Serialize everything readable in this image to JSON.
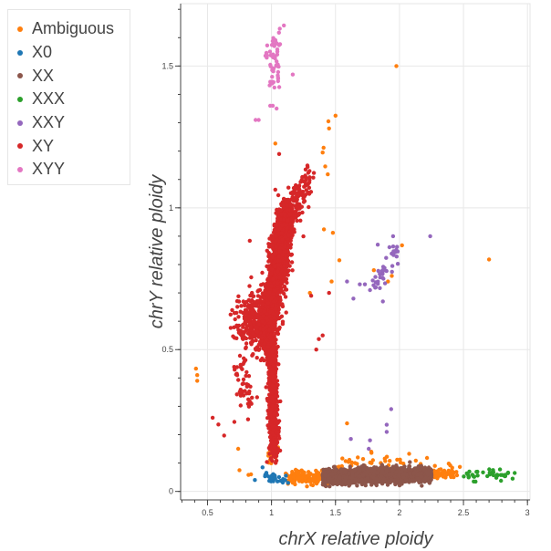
{
  "chart_data": {
    "type": "scatter",
    "title": "",
    "xlabel": "chrX relative ploidy",
    "ylabel": "chrY relative ploidy",
    "xlim": [
      0.29,
      3.02
    ],
    "ylim": [
      -0.03,
      1.72
    ],
    "xticks": [
      "0.5",
      "1",
      "1.5",
      "2",
      "2.5",
      "3"
    ],
    "yticks": [
      "0",
      "0.5",
      "1",
      "1.5"
    ],
    "grid": true,
    "legend_position": "left-outside-top",
    "series": [
      {
        "name": "Ambiguous",
        "color": "#ff7f0e",
        "clusters": [
          {
            "from": [
              1.15,
              0.05
            ],
            "to": [
              1.4,
              0.05
            ],
            "sx": 0.03,
            "sy": 0.012,
            "n": 180
          },
          {
            "from": [
              2.25,
              0.065
            ],
            "to": [
              2.45,
              0.07
            ],
            "sx": 0.03,
            "sy": 0.012,
            "n": 50
          },
          {
            "from": [
              1.5,
              0.1
            ],
            "to": [
              2.2,
              0.1
            ],
            "sx": 0.05,
            "sy": 0.015,
            "n": 40
          },
          {
            "from": [
              0.99,
              0.11
            ],
            "to": [
              1.02,
              0.16
            ],
            "sx": 0.015,
            "sy": 0.01,
            "n": 25
          }
        ],
        "points": [
          [
            1.976,
            1.5
          ],
          [
            1.5,
            1.325
          ],
          [
            1.445,
            1.305
          ],
          [
            1.45,
            1.28
          ],
          [
            1.03,
            1.227
          ],
          [
            1.407,
            1.212
          ],
          [
            1.4,
            1.195
          ],
          [
            1.42,
            1.146
          ],
          [
            1.44,
            1.118
          ],
          [
            1.41,
            0.924
          ],
          [
            1.48,
            0.912
          ],
          [
            2.02,
            0.868
          ],
          [
            2.7,
            0.818
          ],
          [
            0.41,
            0.433
          ],
          [
            0.42,
            0.41
          ],
          [
            0.42,
            0.39
          ],
          [
            1.53,
            0.815
          ],
          [
            1.47,
            0.74
          ],
          [
            1.3,
            0.7
          ],
          [
            1.59,
            0.24
          ],
          [
            0.74,
            0.15
          ],
          [
            0.75,
            0.075
          ],
          [
            1.8,
            0.78
          ],
          [
            1.94,
            0.76
          ],
          [
            1.91,
            0.74
          ],
          [
            0.82,
            0.058
          ],
          [
            0.84,
            0.06
          ],
          [
            1.21,
            0.07
          ],
          [
            1.78,
            0.14
          ]
        ]
      },
      {
        "name": "X0",
        "color": "#1f77b4",
        "clusters": [
          {
            "from": [
              0.95,
              0.045
            ],
            "to": [
              1.08,
              0.045
            ],
            "sx": 0.03,
            "sy": 0.01,
            "n": 35
          }
        ],
        "points": [
          [
            0.87,
            0.04
          ],
          [
            0.93,
            0.085
          ],
          [
            1.13,
            0.03
          ]
        ]
      },
      {
        "name": "XX",
        "color": "#8c564b",
        "clusters": [
          {
            "from": [
              1.4,
              0.05
            ],
            "to": [
              2.25,
              0.06
            ],
            "sx": 0.0,
            "sy": 0.011,
            "n": 2600,
            "uniform": true
          },
          {
            "from": [
              1.7,
              0.06
            ],
            "to": [
              2.0,
              0.065
            ],
            "sx": 0.05,
            "sy": 0.012,
            "n": 300
          }
        ],
        "points": [
          [
            2.17,
            0.09
          ],
          [
            2.05,
            0.04
          ]
        ]
      },
      {
        "name": "XXX",
        "color": "#2ca02c",
        "clusters": [
          {
            "from": [
              2.5,
              0.06
            ],
            "to": [
              2.88,
              0.06
            ],
            "sx": 0.01,
            "sy": 0.01,
            "n": 38
          }
        ],
        "points": [
          [
            2.58,
            0.035
          ],
          [
            2.9,
            0.065
          ]
        ]
      },
      {
        "name": "XXY",
        "color": "#9467bd",
        "clusters": [
          {
            "from": [
              1.82,
              0.72
            ],
            "to": [
              1.98,
              0.86
            ],
            "sx": 0.02,
            "sy": 0.02,
            "n": 40
          }
        ],
        "points": [
          [
            2.24,
            0.9
          ],
          [
            1.95,
            0.9
          ],
          [
            1.83,
            0.87
          ],
          [
            1.59,
            0.74
          ],
          [
            1.64,
            0.68
          ],
          [
            1.69,
            0.73
          ],
          [
            1.73,
            0.73
          ],
          [
            1.77,
            0.71
          ],
          [
            1.87,
            0.67
          ],
          [
            1.935,
            0.29
          ],
          [
            1.9,
            0.235
          ],
          [
            1.9,
            0.21
          ],
          [
            1.62,
            0.185
          ],
          [
            1.77,
            0.18
          ],
          [
            1.76,
            0.15
          ]
        ]
      },
      {
        "name": "XY",
        "color": "#d62728",
        "clusters": [
          {
            "from": [
              0.95,
              0.52
            ],
            "to": [
              1.12,
              0.98
            ],
            "sx": 0.035,
            "sy": 0.035,
            "n": 1800
          },
          {
            "from": [
              1.08,
              0.9
            ],
            "to": [
              1.3,
              1.12
            ],
            "sx": 0.03,
            "sy": 0.03,
            "n": 160
          },
          {
            "from": [
              1.0,
              0.52
            ],
            "to": [
              1.02,
              0.13
            ],
            "sx": 0.018,
            "sy": 0.02,
            "n": 700
          },
          {
            "from": [
              0.76,
              0.6
            ],
            "to": [
              0.96,
              0.62
            ],
            "sx": 0.045,
            "sy": 0.05,
            "n": 260
          },
          {
            "from": [
              0.74,
              0.45
            ],
            "to": [
              0.82,
              0.3
            ],
            "sx": 0.03,
            "sy": 0.03,
            "n": 45
          }
        ],
        "points": [
          [
            1.06,
            1.19
          ],
          [
            1.03,
            1.064
          ],
          [
            0.83,
            0.884
          ],
          [
            1.37,
            0.537
          ],
          [
            0.54,
            0.26
          ],
          [
            0.585,
            0.236
          ],
          [
            0.63,
            0.197
          ],
          [
            0.71,
            0.245
          ],
          [
            1.35,
            0.5
          ],
          [
            1.4,
            0.55
          ],
          [
            1.31,
            0.69
          ],
          [
            1.45,
            0.7
          ]
        ]
      },
      {
        "name": "XYY",
        "color": "#e377c2",
        "clusters": [
          {
            "from": [
              1.0,
              1.45
            ],
            "to": [
              1.04,
              1.56
            ],
            "sx": 0.03,
            "sy": 0.03,
            "n": 55
          }
        ],
        "points": [
          [
            1.097,
            1.643
          ],
          [
            1.166,
            1.47
          ],
          [
            0.876,
            1.31
          ],
          [
            0.9,
            1.31
          ],
          [
            0.99,
            1.36
          ],
          [
            1.01,
            1.36
          ],
          [
            1.04,
            1.35
          ]
        ]
      }
    ]
  }
}
